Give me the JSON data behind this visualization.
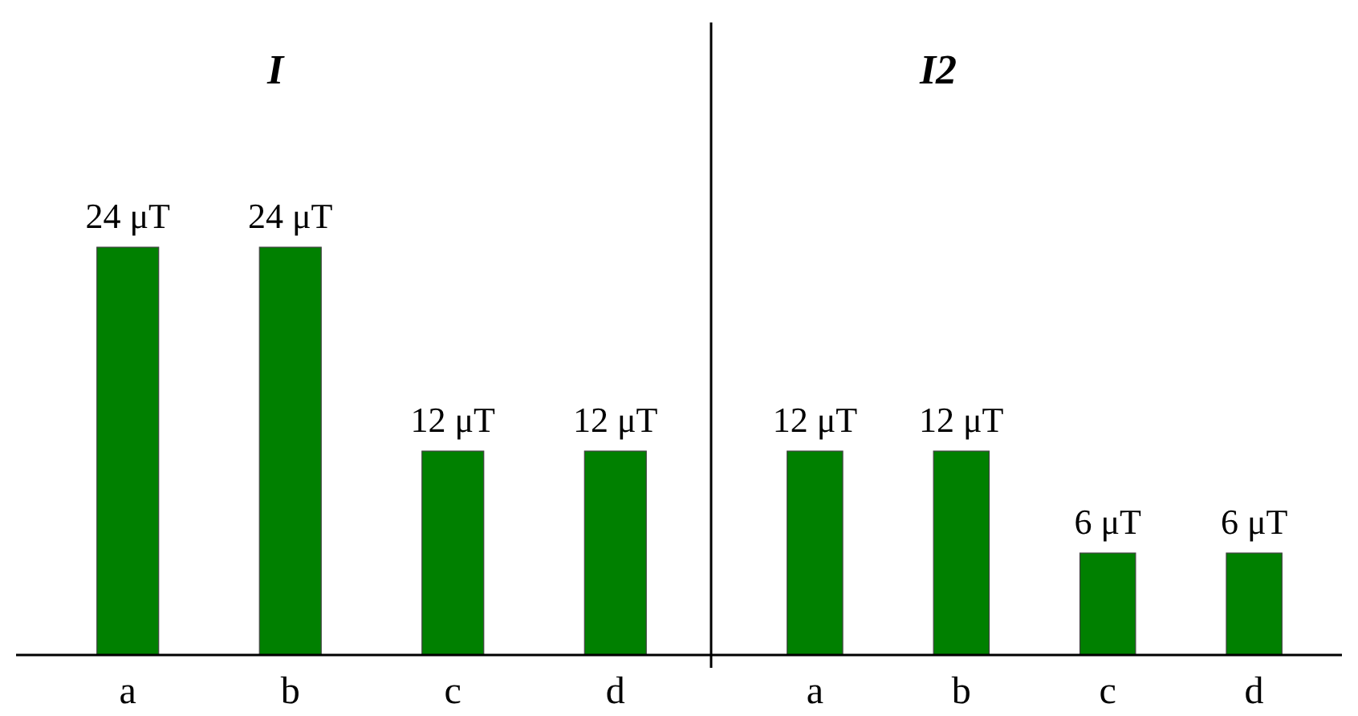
{
  "chart_data": [
    {
      "type": "bar",
      "title": "I",
      "categories": [
        "a",
        "b",
        "c",
        "d"
      ],
      "values": [
        24,
        24,
        12,
        12
      ],
      "value_labels": [
        "24 μT",
        "24 μT",
        "12 μT",
        "12 μT"
      ],
      "color": "#008000"
    },
    {
      "type": "bar",
      "title": "I2",
      "categories": [
        "a",
        "b",
        "c",
        "d"
      ],
      "values": [
        12,
        12,
        6,
        6
      ],
      "value_labels": [
        "12 μT",
        "12 μT",
        "6 μT",
        "6 μT"
      ],
      "color": "#008000"
    }
  ]
}
